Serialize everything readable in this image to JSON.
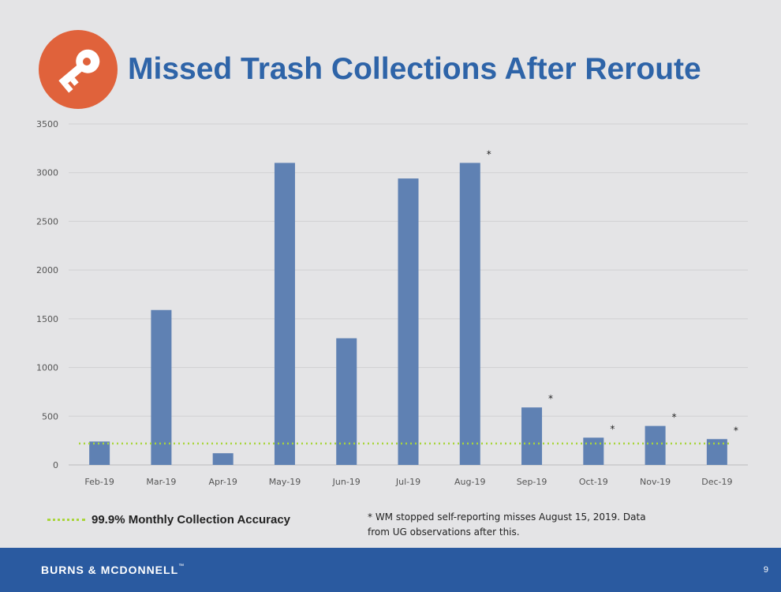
{
  "slide": {
    "title": "Missed Trash Collections After Reroute",
    "logo_icon": "key-icon",
    "legend_label": "99.9% Monthly Collection Accuracy",
    "footnote": "* WM stopped self-reporting misses August 15, 2019. Data from UG observations after this.",
    "footer": {
      "brand_left": "BURNS",
      "brand_right": "MCDONNELL",
      "page_number": "9"
    },
    "colors": {
      "title": "#2e64a8",
      "bar": "#5f81b3",
      "threshold": "#a9d53b",
      "footer": "#2a5aa0",
      "logo": "#e0623b"
    }
  },
  "chart_data": {
    "type": "bar",
    "title": "Missed Trash Collections After Reroute",
    "categories": [
      "Feb-19",
      "Mar-19",
      "Apr-19",
      "May-19",
      "Jun-19",
      "Jul-19",
      "Aug-19",
      "Sep-19",
      "Oct-19",
      "Nov-19",
      "Dec-19"
    ],
    "values": [
      240,
      1590,
      120,
      3100,
      1300,
      2940,
      3100,
      590,
      280,
      400,
      265
    ],
    "asterisk_categories": [
      "Aug-19",
      "Sep-19",
      "Oct-19",
      "Nov-19",
      "Dec-19"
    ],
    "threshold": {
      "label": "99.9% Monthly Collection Accuracy",
      "value": 220,
      "style": "dotted"
    },
    "ylim": [
      0,
      3500
    ],
    "yticks": [
      0,
      500,
      1000,
      1500,
      2000,
      2500,
      3000,
      3500
    ],
    "grid": true,
    "xlabel": "",
    "ylabel": ""
  }
}
